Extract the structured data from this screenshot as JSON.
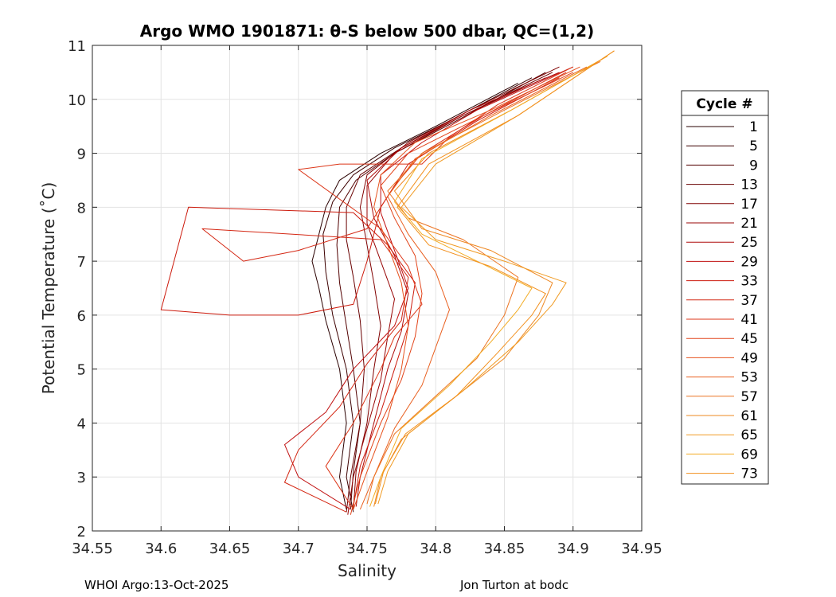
{
  "chart_data": {
    "type": "line",
    "title": "Argo WMO 1901871: θ-S below 500 dbar,  QC=(1,2)",
    "xlabel": "Salinity",
    "ylabel": "Potential Temperature (˚C)",
    "xlim": [
      34.55,
      34.95
    ],
    "ylim": [
      2,
      11
    ],
    "x_ticks": [
      "34.55",
      "34.6",
      "34.65",
      "34.7",
      "34.75",
      "34.8",
      "34.85",
      "34.9",
      "34.95"
    ],
    "y_ticks": [
      "2",
      "3",
      "4",
      "5",
      "6",
      "7",
      "8",
      "9",
      "10",
      "11"
    ],
    "grid": true,
    "legend_title": "Cycle #",
    "legend_position": "right-outside",
    "series": [
      {
        "name": "1",
        "color": "#2a0000",
        "points": [
          [
            34.735,
            2.4
          ],
          [
            34.73,
            3.0
          ],
          [
            34.735,
            4.0
          ],
          [
            34.73,
            5.0
          ],
          [
            34.72,
            5.9
          ],
          [
            34.715,
            6.5
          ],
          [
            34.71,
            7.0
          ],
          [
            34.715,
            7.5
          ],
          [
            34.72,
            8.0
          ],
          [
            34.73,
            8.5
          ],
          [
            34.76,
            9.0
          ],
          [
            34.8,
            9.5
          ],
          [
            34.86,
            10.3
          ]
        ]
      },
      {
        "name": "5",
        "color": "#3d0000",
        "points": [
          [
            34.74,
            2.35
          ],
          [
            34.735,
            3.0
          ],
          [
            34.74,
            4.0
          ],
          [
            34.735,
            5.0
          ],
          [
            34.725,
            6.0
          ],
          [
            34.72,
            6.8
          ],
          [
            34.718,
            7.5
          ],
          [
            34.725,
            8.1
          ],
          [
            34.74,
            8.6
          ],
          [
            34.77,
            9.1
          ],
          [
            34.81,
            9.6
          ],
          [
            34.87,
            10.4
          ]
        ]
      },
      {
        "name": "9",
        "color": "#520000",
        "points": [
          [
            34.738,
            2.4
          ],
          [
            34.74,
            3.1
          ],
          [
            34.745,
            4.0
          ],
          [
            34.74,
            5.0
          ],
          [
            34.735,
            5.8
          ],
          [
            34.73,
            6.6
          ],
          [
            34.728,
            7.3
          ],
          [
            34.73,
            8.0
          ],
          [
            34.742,
            8.5
          ],
          [
            34.77,
            9.0
          ],
          [
            34.815,
            9.6
          ],
          [
            34.88,
            10.5
          ]
        ]
      },
      {
        "name": "13",
        "color": "#6a0202",
        "points": [
          [
            34.735,
            2.35
          ],
          [
            34.738,
            3.0
          ],
          [
            34.745,
            4.0
          ],
          [
            34.748,
            5.0
          ],
          [
            34.745,
            5.9
          ],
          [
            34.74,
            6.7
          ],
          [
            34.735,
            7.4
          ],
          [
            34.735,
            8.0
          ],
          [
            34.745,
            8.6
          ],
          [
            34.775,
            9.1
          ],
          [
            34.82,
            9.7
          ],
          [
            34.885,
            10.5
          ]
        ]
      },
      {
        "name": "17",
        "color": "#800000",
        "points": [
          [
            34.74,
            2.4
          ],
          [
            34.742,
            3.1
          ],
          [
            34.75,
            4.0
          ],
          [
            34.755,
            5.0
          ],
          [
            34.76,
            5.8
          ],
          [
            34.755,
            6.6
          ],
          [
            34.75,
            7.3
          ],
          [
            34.745,
            8.0
          ],
          [
            34.75,
            8.6
          ],
          [
            34.78,
            9.2
          ],
          [
            34.825,
            9.8
          ],
          [
            34.89,
            10.6
          ]
        ]
      },
      {
        "name": "21",
        "color": "#980606",
        "points": [
          [
            34.736,
            2.3
          ],
          [
            34.74,
            3.0
          ],
          [
            34.75,
            3.9
          ],
          [
            34.76,
            4.8
          ],
          [
            34.765,
            5.6
          ],
          [
            34.77,
            6.3
          ],
          [
            34.76,
            7.0
          ],
          [
            34.75,
            7.7
          ],
          [
            34.75,
            8.4
          ],
          [
            34.77,
            9.0
          ],
          [
            34.82,
            9.7
          ],
          [
            34.88,
            10.4
          ]
        ]
      },
      {
        "name": "25",
        "color": "#ae0a0a",
        "points": [
          [
            34.742,
            2.45
          ],
          [
            34.745,
            3.0
          ],
          [
            34.755,
            4.0
          ],
          [
            34.765,
            5.0
          ],
          [
            34.775,
            5.7
          ],
          [
            34.78,
            6.4
          ],
          [
            34.77,
            7.1
          ],
          [
            34.755,
            7.8
          ],
          [
            34.75,
            8.5
          ],
          [
            34.775,
            9.1
          ],
          [
            34.825,
            9.8
          ],
          [
            34.89,
            10.5
          ]
        ]
      },
      {
        "name": "29",
        "color": "#c01010",
        "points": [
          [
            34.738,
            2.4
          ],
          [
            34.7,
            3.0
          ],
          [
            34.69,
            3.6
          ],
          [
            34.72,
            4.2
          ],
          [
            34.74,
            5.0
          ],
          [
            34.77,
            5.8
          ],
          [
            34.78,
            6.5
          ],
          [
            34.77,
            7.2
          ],
          [
            34.76,
            7.9
          ],
          [
            34.76,
            8.6
          ],
          [
            34.79,
            9.2
          ],
          [
            34.83,
            9.8
          ],
          [
            34.9,
            10.6
          ]
        ]
      },
      {
        "name": "33",
        "color": "#cc1a0c",
        "points": [
          [
            34.74,
            2.45
          ],
          [
            34.745,
            3.2
          ],
          [
            34.76,
            4.2
          ],
          [
            34.77,
            5.0
          ],
          [
            34.78,
            5.8
          ],
          [
            34.785,
            6.6
          ],
          [
            34.765,
            7.3
          ],
          [
            34.74,
            7.9
          ],
          [
            34.62,
            8.0
          ],
          [
            34.6,
            6.1
          ],
          [
            34.65,
            6.0
          ],
          [
            34.7,
            6.0
          ],
          [
            34.74,
            6.2
          ],
          [
            34.75,
            7.0
          ],
          [
            34.76,
            8.0
          ],
          [
            34.78,
            8.8
          ],
          [
            34.83,
            9.6
          ],
          [
            34.89,
            10.4
          ]
        ]
      },
      {
        "name": "37",
        "color": "#d42814",
        "points": [
          [
            34.735,
            2.35
          ],
          [
            34.69,
            2.9
          ],
          [
            34.7,
            3.5
          ],
          [
            34.73,
            4.3
          ],
          [
            34.75,
            5.1
          ],
          [
            34.775,
            5.9
          ],
          [
            34.78,
            6.7
          ],
          [
            34.76,
            7.4
          ],
          [
            34.63,
            7.6
          ],
          [
            34.66,
            7.0
          ],
          [
            34.7,
            7.2
          ],
          [
            34.75,
            7.6
          ],
          [
            34.77,
            8.4
          ],
          [
            34.79,
            9.0
          ],
          [
            34.835,
            9.7
          ],
          [
            34.895,
            10.5
          ]
        ]
      },
      {
        "name": "41",
        "color": "#dc3618",
        "points": [
          [
            34.74,
            2.4
          ],
          [
            34.72,
            3.2
          ],
          [
            34.74,
            4.0
          ],
          [
            34.76,
            5.0
          ],
          [
            34.77,
            5.6
          ],
          [
            34.79,
            6.2
          ],
          [
            34.78,
            6.9
          ],
          [
            34.76,
            7.6
          ],
          [
            34.7,
            8.7
          ],
          [
            34.73,
            8.8
          ],
          [
            34.79,
            8.8
          ],
          [
            34.81,
            9.3
          ],
          [
            34.845,
            9.9
          ],
          [
            34.9,
            10.6
          ]
        ]
      },
      {
        "name": "45",
        "color": "#e2441a",
        "points": [
          [
            34.738,
            2.3
          ],
          [
            34.745,
            3.0
          ],
          [
            34.76,
            4.0
          ],
          [
            34.775,
            4.8
          ],
          [
            34.785,
            5.6
          ],
          [
            34.79,
            6.4
          ],
          [
            34.785,
            7.1
          ],
          [
            34.77,
            7.8
          ],
          [
            34.76,
            8.4
          ],
          [
            34.78,
            9.0
          ],
          [
            34.835,
            9.7
          ],
          [
            34.9,
            10.5
          ]
        ]
      },
      {
        "name": "49",
        "color": "#e6521e",
        "points": [
          [
            34.74,
            2.4
          ],
          [
            34.75,
            3.1
          ],
          [
            34.765,
            4.1
          ],
          [
            34.775,
            5.0
          ],
          [
            34.78,
            5.8
          ],
          [
            34.775,
            6.6
          ],
          [
            34.765,
            7.3
          ],
          [
            34.755,
            8.0
          ],
          [
            34.76,
            8.6
          ],
          [
            34.785,
            9.2
          ],
          [
            34.84,
            9.8
          ],
          [
            34.905,
            10.6
          ]
        ]
      },
      {
        "name": "53",
        "color": "#e96020",
        "points": [
          [
            34.745,
            2.4
          ],
          [
            34.755,
            3.0
          ],
          [
            34.77,
            3.9
          ],
          [
            34.79,
            4.7
          ],
          [
            34.8,
            5.4
          ],
          [
            34.81,
            6.1
          ],
          [
            34.8,
            6.8
          ],
          [
            34.78,
            7.5
          ],
          [
            34.765,
            8.2
          ],
          [
            34.785,
            8.9
          ],
          [
            34.84,
            9.7
          ],
          [
            34.91,
            10.6
          ]
        ]
      },
      {
        "name": "57",
        "color": "#ec7422",
        "points": [
          [
            34.75,
            2.5
          ],
          [
            34.755,
            3.0
          ],
          [
            34.77,
            3.8
          ],
          [
            34.8,
            4.5
          ],
          [
            34.83,
            5.2
          ],
          [
            34.85,
            6.0
          ],
          [
            34.86,
            6.7
          ],
          [
            34.82,
            7.4
          ],
          [
            34.78,
            7.8
          ],
          [
            34.765,
            8.3
          ],
          [
            34.79,
            9.0
          ],
          [
            34.85,
            9.8
          ],
          [
            34.92,
            10.7
          ]
        ]
      },
      {
        "name": "61",
        "color": "#ee8822",
        "points": [
          [
            34.755,
            2.45
          ],
          [
            34.76,
            3.0
          ],
          [
            34.775,
            3.7
          ],
          [
            34.81,
            4.4
          ],
          [
            34.85,
            5.2
          ],
          [
            34.875,
            6.0
          ],
          [
            34.885,
            6.6
          ],
          [
            34.84,
            7.2
          ],
          [
            34.79,
            7.6
          ],
          [
            34.77,
            8.3
          ],
          [
            34.795,
            9.0
          ],
          [
            34.855,
            9.8
          ],
          [
            34.925,
            10.8
          ]
        ]
      },
      {
        "name": "65",
        "color": "#f09a22",
        "points": [
          [
            34.758,
            2.5
          ],
          [
            34.765,
            3.1
          ],
          [
            34.78,
            3.8
          ],
          [
            34.82,
            4.6
          ],
          [
            34.86,
            5.5
          ],
          [
            34.885,
            6.2
          ],
          [
            34.895,
            6.6
          ],
          [
            34.85,
            7.0
          ],
          [
            34.8,
            7.4
          ],
          [
            34.775,
            8.0
          ],
          [
            34.8,
            8.8
          ],
          [
            34.86,
            9.7
          ],
          [
            34.93,
            10.9
          ]
        ]
      },
      {
        "name": "69",
        "color": "#f2ac24",
        "points": [
          [
            34.752,
            2.45
          ],
          [
            34.76,
            3.0
          ],
          [
            34.775,
            3.9
          ],
          [
            34.81,
            4.7
          ],
          [
            34.84,
            5.5
          ],
          [
            34.86,
            6.1
          ],
          [
            34.87,
            6.5
          ],
          [
            34.83,
            7.0
          ],
          [
            34.79,
            7.5
          ],
          [
            34.77,
            8.1
          ],
          [
            34.79,
            8.9
          ],
          [
            34.855,
            9.8
          ],
          [
            34.925,
            10.8
          ]
        ]
      },
      {
        "name": "73",
        "color": "#f2901e",
        "points": [
          [
            34.756,
            2.5
          ],
          [
            34.762,
            3.1
          ],
          [
            34.778,
            3.8
          ],
          [
            34.815,
            4.5
          ],
          [
            34.845,
            5.3
          ],
          [
            34.87,
            6.0
          ],
          [
            34.88,
            6.4
          ],
          [
            34.84,
            6.9
          ],
          [
            34.795,
            7.3
          ],
          [
            34.772,
            8.0
          ],
          [
            34.795,
            8.8
          ],
          [
            34.86,
            9.7
          ],
          [
            34.93,
            10.9
          ]
        ]
      }
    ]
  },
  "footer": {
    "left": "WHOI Argo:13-Oct-2025",
    "right": "Jon Turton at bodc"
  }
}
